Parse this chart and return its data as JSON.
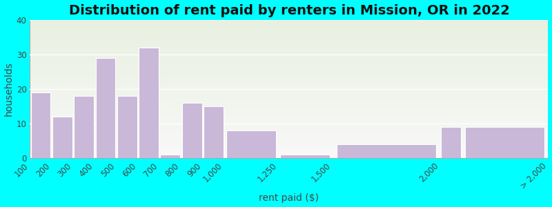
{
  "title": "Distribution of rent paid by renters in Mission, OR in 2022",
  "xlabel": "rent paid ($)",
  "ylabel": "households",
  "bar_color": "#c9b8d8",
  "bar_edge_color": "#ffffff",
  "background_color": "#00ffff",
  "plot_bg_top": "#e8f0e0",
  "plot_bg_bottom": "#f8f8f8",
  "ylim": [
    0,
    40
  ],
  "yticks": [
    0,
    10,
    20,
    30,
    40
  ],
  "title_fontsize": 14,
  "axis_label_fontsize": 10,
  "tick_fontsize": 8.5,
  "bins_left": [
    100,
    200,
    300,
    400,
    500,
    600,
    700,
    800,
    900,
    1000,
    1250,
    1500,
    2000,
    2100
  ],
  "bins_width": [
    100,
    100,
    100,
    100,
    100,
    100,
    100,
    100,
    100,
    250,
    250,
    500,
    100,
    400
  ],
  "values": [
    19,
    12,
    18,
    29,
    18,
    32,
    1,
    16,
    15,
    8,
    1,
    4,
    9,
    9
  ],
  "tick_positions": [
    100,
    200,
    300,
    400,
    500,
    600,
    700,
    800,
    900,
    1000,
    1250,
    1500,
    2000,
    2500
  ],
  "tick_labels": [
    "100",
    "200",
    "300",
    "400",
    "500",
    "600",
    "700",
    "800",
    "900",
    "1,000",
    "1,250",
    "1,500",
    "2,000",
    "> 2,000"
  ]
}
